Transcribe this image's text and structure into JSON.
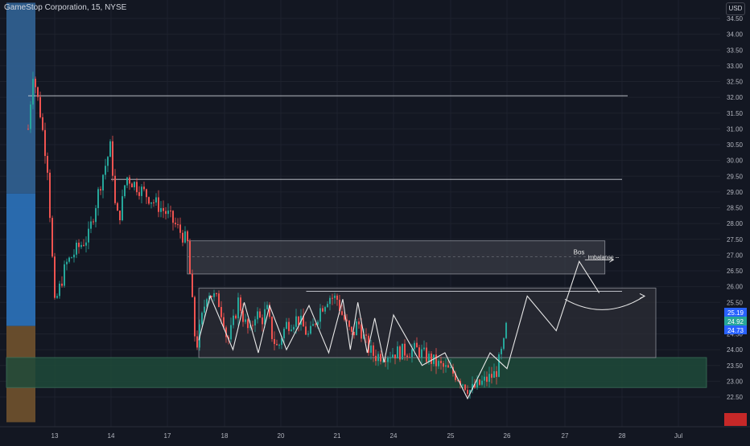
{
  "header": {
    "symbol_title": "GameStop Corporation, 15, NYSE",
    "currency_label": "USD"
  },
  "colors": {
    "background": "#131722",
    "up_candle": "#26a69a",
    "down_candle": "#ef5350",
    "zone_blue": "#2a6fb5",
    "zone_brown": "#6b4f2d",
    "zone_green": "#1e4a3a",
    "zone_gray": "#3a3c45",
    "drawing": "#e8e8e8"
  },
  "chart_data": {
    "type": "candlestick",
    "title": "GameStop Corporation, 15, NYSE",
    "y_axis": {
      "ylim": [
        22.0,
        35.0
      ],
      "tick_labels": [
        "22.50",
        "23.00",
        "23.50",
        "24.00",
        "24.50",
        "25.00",
        "25.50",
        "26.00",
        "26.50",
        "27.00",
        "27.50",
        "28.00",
        "28.50",
        "29.00",
        "29.50",
        "30.00",
        "30.50",
        "31.00",
        "31.50",
        "32.00",
        "32.50",
        "33.00",
        "33.50",
        "34.00",
        "34.50"
      ],
      "tick_values": [
        22.5,
        23.0,
        23.5,
        24.0,
        24.5,
        25.0,
        25.5,
        26.0,
        26.5,
        27.0,
        27.5,
        28.0,
        28.5,
        29.0,
        29.5,
        30.0,
        30.5,
        31.0,
        31.5,
        32.0,
        32.5,
        33.0,
        33.5,
        34.0,
        34.5
      ]
    },
    "x_axis": {
      "tick_labels": [
        "13",
        "14",
        "17",
        "18",
        "20",
        "21",
        "24",
        "25",
        "26",
        "27",
        "28",
        "Jul"
      ],
      "tick_values": [
        13,
        14,
        17,
        18,
        20,
        21,
        24,
        25,
        26,
        27,
        28,
        29
      ]
    },
    "grid": true,
    "price_path": [
      [
        12.45,
        31.0
      ],
      [
        12.55,
        32.8
      ],
      [
        12.7,
        31.5
      ],
      [
        12.85,
        29.8
      ],
      [
        13.0,
        25.4
      ],
      [
        13.2,
        26.7
      ],
      [
        13.4,
        27.2
      ],
      [
        13.6,
        27.6
      ],
      [
        13.8,
        29.2
      ],
      [
        14.0,
        30.5
      ],
      [
        14.2,
        28.6
      ],
      [
        14.4,
        28.1
      ],
      [
        14.6,
        28.7
      ],
      [
        14.8,
        29.5
      ],
      [
        17.0,
        28.3
      ],
      [
        17.2,
        27.8
      ],
      [
        17.35,
        27.4
      ],
      [
        17.5,
        24.0
      ],
      [
        17.7,
        25.9
      ],
      [
        17.9,
        25.5
      ],
      [
        18.1,
        24.2
      ],
      [
        18.3,
        24.8
      ],
      [
        18.5,
        25.6
      ],
      [
        18.7,
        24.9
      ],
      [
        18.9,
        24.5
      ],
      [
        19.1,
        25.2
      ],
      [
        19.3,
        24.9
      ],
      [
        19.5,
        25.3
      ],
      [
        19.7,
        24.4
      ],
      [
        19.9,
        24.0
      ],
      [
        20.1,
        24.8
      ],
      [
        20.3,
        25.0
      ],
      [
        20.5,
        24.4
      ],
      [
        20.7,
        25.3
      ],
      [
        20.85,
        25.7
      ],
      [
        21.0,
        25.6
      ],
      [
        21.2,
        25.2
      ],
      [
        21.5,
        24.8
      ],
      [
        21.8,
        24.4
      ],
      [
        22.1,
        24.9
      ],
      [
        22.4,
        24.4
      ],
      [
        22.7,
        24.0
      ],
      [
        23.0,
        23.8
      ],
      [
        24.0,
        23.9
      ],
      [
        24.4,
        24.0
      ],
      [
        24.8,
        23.5
      ],
      [
        25.1,
        23.2
      ],
      [
        25.35,
        22.7
      ],
      [
        25.6,
        23.0
      ],
      [
        25.8,
        23.25
      ],
      [
        25.95,
        24.2
      ],
      [
        26.0,
        24.9
      ]
    ],
    "last_values": [
      "25.19",
      "24.92",
      "24.73"
    ]
  },
  "zones": [
    {
      "name": "blue-zone-top",
      "x_from": 12.0,
      "x_to": 12.6,
      "y_from": 28.95,
      "y_to": 35.0,
      "color": "#2f5f8f"
    },
    {
      "name": "blue-zone",
      "x_from": 12.0,
      "x_to": 12.6,
      "y_from": 24.75,
      "y_to": 28.95,
      "color": "#2a6fb5"
    },
    {
      "name": "brown-zone",
      "x_from": 12.0,
      "x_to": 12.6,
      "y_from": 21.7,
      "y_to": 24.75,
      "color": "#6b4f2d"
    },
    {
      "name": "green-demand-zone",
      "x_from": 12.0,
      "x_to": 29.5,
      "y_from": 22.8,
      "y_to": 23.75,
      "color": "#1e4a3a"
    },
    {
      "name": "imbalance-zone",
      "x_from": 17.35,
      "x_to": 27.7,
      "y_from": 26.4,
      "y_to": 27.45,
      "color": "#3a3c45"
    },
    {
      "name": "range-zone",
      "x_from": 17.55,
      "x_to": 28.6,
      "y_from": 23.75,
      "y_to": 25.95,
      "color": "#2c2e36"
    }
  ],
  "levels": [
    {
      "name": "level-32",
      "x_from": 12.45,
      "x_to": 28.1,
      "y": 32.05
    },
    {
      "name": "level-29-4",
      "x_from": 14.0,
      "x_to": 28.0,
      "y": 29.4
    },
    {
      "name": "level-25-85",
      "x_from": 20.45,
      "x_to": 28.0,
      "y": 25.85
    }
  ],
  "drawings": {
    "zigzag": [
      [
        17.55,
        24.3
      ],
      [
        17.75,
        25.7
      ],
      [
        18.3,
        24.0
      ],
      [
        18.7,
        25.5
      ],
      [
        19.2,
        23.9
      ],
      [
        19.6,
        25.4
      ],
      [
        20.1,
        24.0
      ],
      [
        20.5,
        25.4
      ],
      [
        20.85,
        23.9
      ],
      [
        21.3,
        25.6
      ],
      [
        21.7,
        24.0
      ],
      [
        22.1,
        25.5
      ],
      [
        22.6,
        23.9
      ],
      [
        23.0,
        25.0
      ],
      [
        23.5,
        23.6
      ],
      [
        24.0,
        25.1
      ],
      [
        24.5,
        23.5
      ],
      [
        24.9,
        23.9
      ],
      [
        25.3,
        22.45
      ],
      [
        25.7,
        23.9
      ],
      [
        26.0,
        23.4
      ],
      [
        26.35,
        25.7
      ],
      [
        26.85,
        24.6
      ],
      [
        27.25,
        26.8
      ],
      [
        27.6,
        25.8
      ]
    ],
    "curve_arrow": {
      "from": [
        27.0,
        25.6
      ],
      "to": [
        28.4,
        25.7
      ]
    },
    "bos_label": "Bos",
    "imbalance_label": "Imbalance --",
    "bos_arrow": {
      "from": [
        27.35,
        26.85
      ],
      "to": [
        27.85,
        26.85
      ]
    }
  }
}
